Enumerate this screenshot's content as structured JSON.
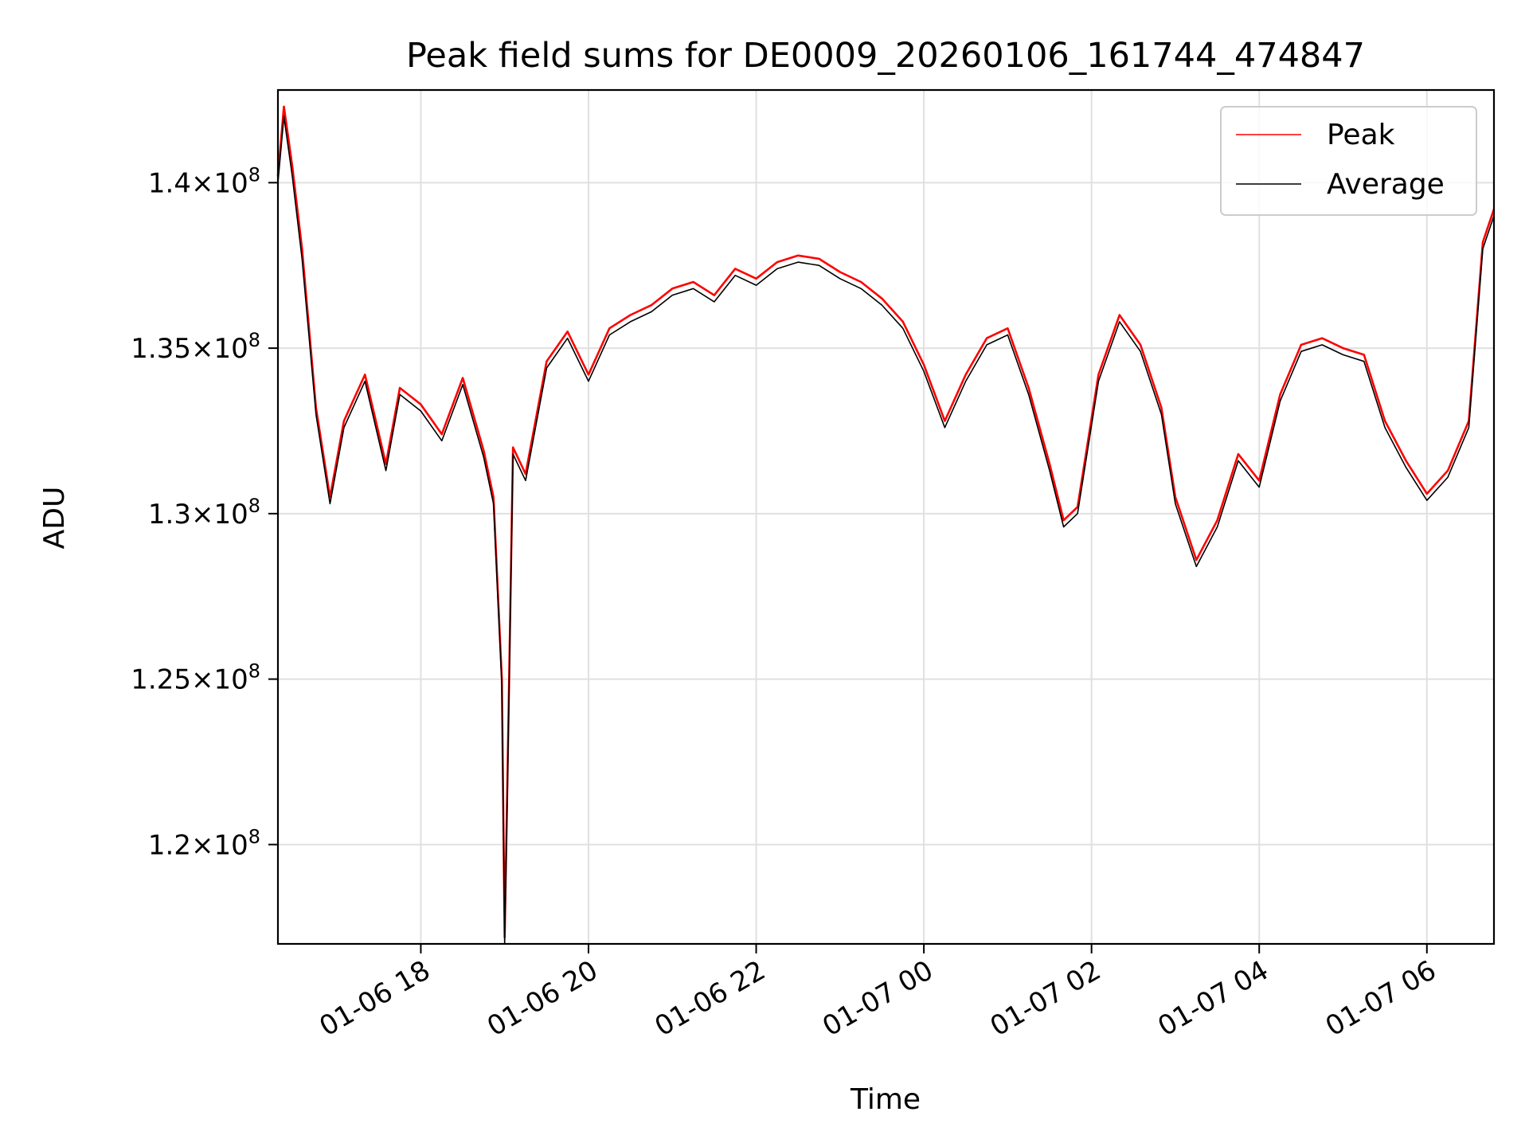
{
  "chart_data": {
    "type": "line",
    "title": "Peak field sums for DE0009_20260106_161744_474847",
    "xlabel": "Time",
    "ylabel": "ADU",
    "ylim": [
      117000000,
      142800000
    ],
    "xlim": [
      "2026-01-06 16:17:44",
      "2026-01-07 06:48:00"
    ],
    "grid": true,
    "legend_position": "top-right",
    "x_ticks": [
      {
        "value": "2026-01-06 18:00",
        "label": "01-06 18"
      },
      {
        "value": "2026-01-06 20:00",
        "label": "01-06 20"
      },
      {
        "value": "2026-01-06 22:00",
        "label": "01-06 22"
      },
      {
        "value": "2026-01-07 00:00",
        "label": "01-07 00"
      },
      {
        "value": "2026-01-07 02:00",
        "label": "01-07 02"
      },
      {
        "value": "2026-01-07 04:00",
        "label": "01-07 04"
      },
      {
        "value": "2026-01-07 06:00",
        "label": "01-07 06"
      }
    ],
    "y_ticks": [
      {
        "value": 120000000,
        "mantissa": "1.2",
        "exp": "8"
      },
      {
        "value": 125000000,
        "mantissa": "1.25",
        "exp": "8"
      },
      {
        "value": 130000000,
        "mantissa": "1.3",
        "exp": "8"
      },
      {
        "value": 135000000,
        "mantissa": "1.35",
        "exp": "8"
      },
      {
        "value": 140000000,
        "mantissa": "1.4",
        "exp": "8"
      }
    ],
    "series": [
      {
        "name": "Peak",
        "color": "#ff0000",
        "x": [
          "2026-01-06 16:17:44",
          "2026-01-06 16:22",
          "2026-01-06 16:28",
          "2026-01-06 16:35",
          "2026-01-06 16:45",
          "2026-01-06 16:55",
          "2026-01-06 17:05",
          "2026-01-06 17:20",
          "2026-01-06 17:35",
          "2026-01-06 17:45",
          "2026-01-06 18:00",
          "2026-01-06 18:15",
          "2026-01-06 18:30",
          "2026-01-06 18:45",
          "2026-01-06 18:52",
          "2026-01-06 18:58",
          "2026-01-06 19:00",
          "2026-01-06 19:02",
          "2026-01-06 19:06",
          "2026-01-06 19:15",
          "2026-01-06 19:30",
          "2026-01-06 19:45",
          "2026-01-06 20:00",
          "2026-01-06 20:15",
          "2026-01-06 20:30",
          "2026-01-06 20:45",
          "2026-01-06 21:00",
          "2026-01-06 21:15",
          "2026-01-06 21:30",
          "2026-01-06 21:45",
          "2026-01-06 22:00",
          "2026-01-06 22:15",
          "2026-01-06 22:30",
          "2026-01-06 22:45",
          "2026-01-06 23:00",
          "2026-01-06 23:15",
          "2026-01-06 23:30",
          "2026-01-06 23:45",
          "2026-01-07 00:00",
          "2026-01-07 00:15",
          "2026-01-07 00:30",
          "2026-01-07 00:45",
          "2026-01-07 01:00",
          "2026-01-07 01:15",
          "2026-01-07 01:30",
          "2026-01-07 01:40",
          "2026-01-07 01:50",
          "2026-01-07 02:05",
          "2026-01-07 02:20",
          "2026-01-07 02:35",
          "2026-01-07 02:50",
          "2026-01-07 03:00",
          "2026-01-07 03:15",
          "2026-01-07 03:30",
          "2026-01-07 03:45",
          "2026-01-07 04:00",
          "2026-01-07 04:15",
          "2026-01-07 04:30",
          "2026-01-07 04:45",
          "2026-01-07 05:00",
          "2026-01-07 05:15",
          "2026-01-07 05:30",
          "2026-01-07 05:45",
          "2026-01-07 06:00",
          "2026-01-07 06:15",
          "2026-01-07 06:30",
          "2026-01-07 06:40",
          "2026-01-07 06:48"
        ],
        "values": [
          140200000,
          142300000,
          140500000,
          138000000,
          133200000,
          130500000,
          132800000,
          134200000,
          131500000,
          133800000,
          133300000,
          132400000,
          134100000,
          131900000,
          130500000,
          125000000,
          117200000,
          122000000,
          132000000,
          131200000,
          134600000,
          135500000,
          134200000,
          135600000,
          136000000,
          136300000,
          136800000,
          137000000,
          136600000,
          137400000,
          137100000,
          137600000,
          137800000,
          137700000,
          137300000,
          137000000,
          136500000,
          135800000,
          134500000,
          132800000,
          134200000,
          135300000,
          135600000,
          133800000,
          131500000,
          129800000,
          130200000,
          134200000,
          136000000,
          135100000,
          133200000,
          130500000,
          128600000,
          129800000,
          131800000,
          131000000,
          133600000,
          135100000,
          135300000,
          135000000,
          134800000,
          132800000,
          131600000,
          130600000,
          131300000,
          132800000,
          138200000,
          139200000
        ]
      },
      {
        "name": "Average",
        "color": "#000000",
        "x": [
          "2026-01-06 16:17:44",
          "2026-01-06 16:22",
          "2026-01-06 16:28",
          "2026-01-06 16:35",
          "2026-01-06 16:45",
          "2026-01-06 16:55",
          "2026-01-06 17:05",
          "2026-01-06 17:20",
          "2026-01-06 17:35",
          "2026-01-06 17:45",
          "2026-01-06 18:00",
          "2026-01-06 18:15",
          "2026-01-06 18:30",
          "2026-01-06 18:45",
          "2026-01-06 18:52",
          "2026-01-06 18:58",
          "2026-01-06 19:00",
          "2026-01-06 19:02",
          "2026-01-06 19:06",
          "2026-01-06 19:15",
          "2026-01-06 19:30",
          "2026-01-06 19:45",
          "2026-01-06 20:00",
          "2026-01-06 20:15",
          "2026-01-06 20:30",
          "2026-01-06 20:45",
          "2026-01-06 21:00",
          "2026-01-06 21:15",
          "2026-01-06 21:30",
          "2026-01-06 21:45",
          "2026-01-06 22:00",
          "2026-01-06 22:15",
          "2026-01-06 22:30",
          "2026-01-06 22:45",
          "2026-01-06 23:00",
          "2026-01-06 23:15",
          "2026-01-06 23:30",
          "2026-01-06 23:45",
          "2026-01-07 00:00",
          "2026-01-07 00:15",
          "2026-01-07 00:30",
          "2026-01-07 00:45",
          "2026-01-07 01:00",
          "2026-01-07 01:15",
          "2026-01-07 01:30",
          "2026-01-07 01:40",
          "2026-01-07 01:50",
          "2026-01-07 02:05",
          "2026-01-07 02:20",
          "2026-01-07 02:35",
          "2026-01-07 02:50",
          "2026-01-07 03:00",
          "2026-01-07 03:15",
          "2026-01-07 03:30",
          "2026-01-07 03:45",
          "2026-01-07 04:00",
          "2026-01-07 04:15",
          "2026-01-07 04:30",
          "2026-01-07 04:45",
          "2026-01-07 05:00",
          "2026-01-07 05:15",
          "2026-01-07 05:30",
          "2026-01-07 05:45",
          "2026-01-07 06:00",
          "2026-01-07 06:15",
          "2026-01-07 06:30",
          "2026-01-07 06:40",
          "2026-01-07 06:48"
        ],
        "values": [
          140000000,
          142000000,
          140200000,
          137700000,
          133000000,
          130300000,
          132600000,
          134000000,
          131300000,
          133600000,
          133100000,
          132200000,
          133900000,
          131700000,
          130300000,
          124800000,
          117000000,
          121600000,
          131800000,
          131000000,
          134400000,
          135300000,
          134000000,
          135400000,
          135800000,
          136100000,
          136600000,
          136800000,
          136400000,
          137200000,
          136900000,
          137400000,
          137600000,
          137500000,
          137100000,
          136800000,
          136300000,
          135600000,
          134300000,
          132600000,
          134000000,
          135100000,
          135400000,
          133600000,
          131300000,
          129600000,
          130000000,
          134000000,
          135800000,
          134900000,
          133000000,
          130300000,
          128400000,
          129600000,
          131600000,
          130800000,
          133400000,
          134900000,
          135100000,
          134800000,
          134600000,
          132600000,
          131400000,
          130400000,
          131100000,
          132600000,
          138000000,
          139000000
        ]
      }
    ]
  }
}
